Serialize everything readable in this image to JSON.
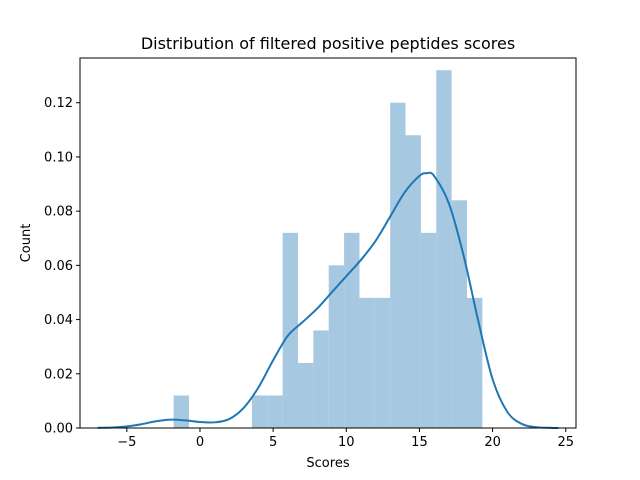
{
  "chart_data": {
    "type": "bar",
    "subtype": "histogram-with-kde",
    "title": "Distribution of filtered positive peptides scores",
    "xlabel": "Scores",
    "ylabel": "Count",
    "xlim": [
      -8.2,
      25.7
    ],
    "ylim": [
      0,
      0.1365
    ],
    "x_ticks": [
      -5,
      0,
      5,
      10,
      15,
      20,
      25
    ],
    "x_tick_labels": [
      "−5",
      "0",
      "5",
      "10",
      "15",
      "20",
      "25"
    ],
    "y_ticks": [
      0,
      0.02,
      0.04,
      0.06,
      0.08,
      0.1,
      0.12
    ],
    "y_tick_labels": [
      "0.00",
      "0.02",
      "0.04",
      "0.06",
      "0.08",
      "0.10",
      "0.12"
    ],
    "bars": [
      {
        "x0": -1.8,
        "x1": -0.75,
        "value": 0.012
      },
      {
        "x0": 3.55,
        "x1": 4.6,
        "value": 0.012
      },
      {
        "x0": 4.6,
        "x1": 5.65,
        "value": 0.012
      },
      {
        "x0": 5.65,
        "x1": 6.7,
        "value": 0.072
      },
      {
        "x0": 6.7,
        "x1": 7.75,
        "value": 0.024
      },
      {
        "x0": 7.75,
        "x1": 8.8,
        "value": 0.036
      },
      {
        "x0": 8.8,
        "x1": 9.85,
        "value": 0.06
      },
      {
        "x0": 9.85,
        "x1": 10.9,
        "value": 0.072
      },
      {
        "x0": 10.9,
        "x1": 11.95,
        "value": 0.048
      },
      {
        "x0": 11.95,
        "x1": 13.0,
        "value": 0.048
      },
      {
        "x0": 13.0,
        "x1": 14.05,
        "value": 0.12
      },
      {
        "x0": 14.05,
        "x1": 15.1,
        "value": 0.108
      },
      {
        "x0": 15.1,
        "x1": 16.15,
        "value": 0.072
      },
      {
        "x0": 16.15,
        "x1": 17.2,
        "value": 0.132
      },
      {
        "x0": 17.2,
        "x1": 18.25,
        "value": 0.084
      },
      {
        "x0": 18.25,
        "x1": 19.3,
        "value": 0.048
      }
    ],
    "kde": {
      "x": [
        -7,
        -6,
        -5,
        -4,
        -3,
        -2,
        -1,
        0,
        1,
        2,
        3,
        4,
        5,
        6,
        7,
        8,
        9,
        10,
        11,
        12,
        13,
        14,
        15,
        15.5,
        16,
        17,
        18,
        19,
        20,
        21,
        22,
        23,
        24,
        24.5
      ],
      "y": [
        0.0001,
        0.0002,
        0.0006,
        0.0014,
        0.0025,
        0.0031,
        0.0028,
        0.0022,
        0.0021,
        0.0033,
        0.0075,
        0.015,
        0.025,
        0.034,
        0.039,
        0.044,
        0.05,
        0.056,
        0.062,
        0.069,
        0.078,
        0.087,
        0.093,
        0.094,
        0.093,
        0.083,
        0.064,
        0.04,
        0.018,
        0.006,
        0.0015,
        0.0003,
        5e-05,
        0.0
      ]
    },
    "grid": false,
    "legend": "none",
    "colors": {
      "bar": "#a6c8e0",
      "line": "#1f77b4",
      "axis": "#000000"
    }
  }
}
